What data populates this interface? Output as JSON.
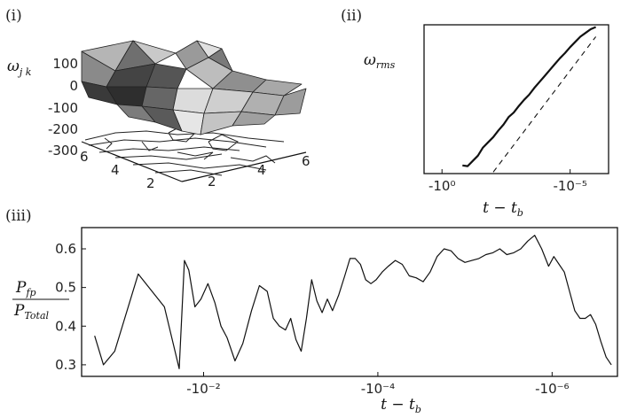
{
  "chart_data": [
    {
      "panel": "(i)",
      "type": "surface3d",
      "zlabel": "ω_jk",
      "zlabel_main": "ω",
      "zlabel_sub": "j k",
      "z_ticks": [
        "100",
        "0",
        "-100",
        "-200",
        "-300"
      ],
      "x_ticks": [
        "2",
        "4",
        "6"
      ],
      "y_ticks": [
        "6",
        "4",
        "2"
      ],
      "z_range": [
        -300,
        150
      ],
      "grid": false
    },
    {
      "panel": "(ii)",
      "type": "line",
      "ylabel": "ω_rms",
      "ylabel_main": "ω",
      "ylabel_sub": "rms",
      "xlabel": "t − t_b",
      "xlabel_main": "t − t",
      "xlabel_sub": "b",
      "x_ticks": [
        "-10⁰",
        "-10⁻⁵"
      ],
      "x_tick_values": [
        0,
        5
      ],
      "xlim": [
        -0.7,
        6.5
      ],
      "ylim": [
        0,
        10
      ],
      "series": [
        {
          "style": "solid",
          "x": [
            0.8,
            1.0,
            1.2,
            1.4,
            1.6,
            1.8,
            2.0,
            2.2,
            2.4,
            2.6,
            2.8,
            3.0,
            3.2,
            3.4,
            3.6,
            3.8,
            4.0,
            4.2,
            4.4,
            4.6,
            4.8,
            5.0,
            5.2,
            5.4,
            5.6,
            5.8,
            6.0
          ],
          "y": [
            0.55,
            0.5,
            0.85,
            1.2,
            1.75,
            2.1,
            2.45,
            2.9,
            3.3,
            3.8,
            4.1,
            4.55,
            4.95,
            5.3,
            5.75,
            6.15,
            6.55,
            6.95,
            7.35,
            7.75,
            8.1,
            8.5,
            8.85,
            9.2,
            9.45,
            9.7,
            9.85
          ]
        },
        {
          "style": "dashed",
          "x": [
            2.0,
            6.0
          ],
          "y": [
            0.1,
            9.2
          ]
        }
      ],
      "grid": false
    },
    {
      "panel": "(iii)",
      "type": "line",
      "ylabel": "P_fp / P_Total",
      "ylabel_num_main": "P",
      "ylabel_num_sub": "fp",
      "ylabel_den_main": "P",
      "ylabel_den_sub": "Total",
      "xlabel": "t − t_b",
      "xlabel_main": "t − t",
      "xlabel_sub": "b",
      "x_ticks": [
        "-10⁻²",
        "-10⁻⁴",
        "-10⁻⁶"
      ],
      "x_tick_values": [
        2,
        4,
        6
      ],
      "y_ticks": [
        "0.3",
        "0.4",
        "0.5",
        "0.6"
      ],
      "y_tick_values": [
        0.3,
        0.4,
        0.5,
        0.6
      ],
      "xlim": [
        0.6,
        6.75
      ],
      "ylim": [
        0.27,
        0.655
      ],
      "series": [
        {
          "style": "solid",
          "x": [
            0.75,
            0.85,
            0.98,
            1.25,
            1.55,
            1.72,
            1.78,
            1.83,
            1.9,
            1.97,
            2.05,
            2.13,
            2.2,
            2.27,
            2.36,
            2.45,
            2.55,
            2.64,
            2.73,
            2.8,
            2.87,
            2.94,
            3.0,
            3.06,
            3.12,
            3.18,
            3.24,
            3.3,
            3.36,
            3.42,
            3.48,
            3.55,
            3.62,
            3.68,
            3.74,
            3.8,
            3.86,
            3.92,
            3.98,
            4.05,
            4.12,
            4.2,
            4.28,
            4.36,
            4.44,
            4.52,
            4.6,
            4.68,
            4.76,
            4.84,
            4.92,
            5.0,
            5.08,
            5.16,
            5.24,
            5.32,
            5.4,
            5.48,
            5.56,
            5.64,
            5.72,
            5.8,
            5.88,
            5.96,
            6.02,
            6.08,
            6.14,
            6.2,
            6.26,
            6.32,
            6.38,
            6.44,
            6.5,
            6.56,
            6.62,
            6.68
          ],
          "y": [
            0.375,
            0.3,
            0.335,
            0.535,
            0.45,
            0.29,
            0.57,
            0.545,
            0.45,
            0.47,
            0.51,
            0.46,
            0.4,
            0.37,
            0.31,
            0.355,
            0.44,
            0.505,
            0.49,
            0.42,
            0.4,
            0.39,
            0.42,
            0.365,
            0.335,
            0.42,
            0.52,
            0.465,
            0.435,
            0.47,
            0.44,
            0.48,
            0.53,
            0.575,
            0.575,
            0.56,
            0.52,
            0.51,
            0.52,
            0.54,
            0.555,
            0.57,
            0.56,
            0.53,
            0.525,
            0.515,
            0.54,
            0.58,
            0.6,
            0.595,
            0.575,
            0.565,
            0.57,
            0.575,
            0.585,
            0.59,
            0.6,
            0.585,
            0.59,
            0.6,
            0.62,
            0.635,
            0.6,
            0.555,
            0.58,
            0.56,
            0.54,
            0.49,
            0.44,
            0.42,
            0.42,
            0.43,
            0.405,
            0.36,
            0.32,
            0.3
          ]
        }
      ],
      "grid": false
    }
  ]
}
